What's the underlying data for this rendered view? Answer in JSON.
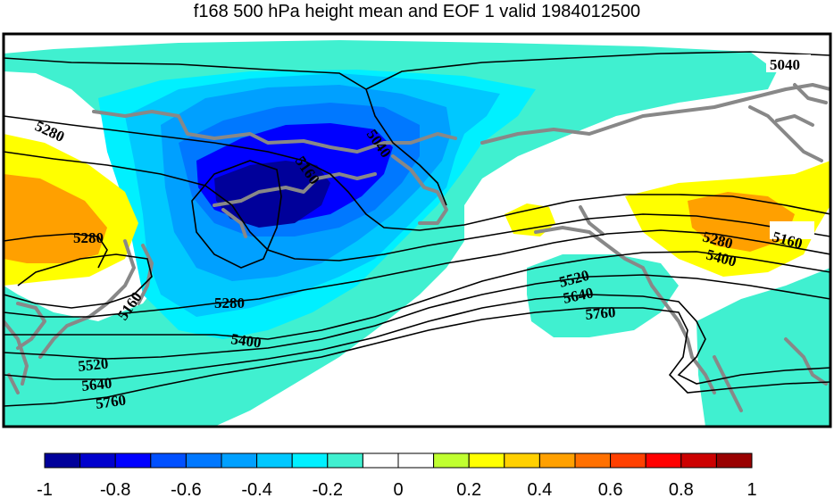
{
  "title": "f168 500 hPa height mean and EOF 1 valid 1984012500",
  "colors": {
    "ocean_white": "#ffffff",
    "coast": "#888888",
    "contour": "#000000",
    "frame": "#000000"
  },
  "contour_labels": [
    "5040",
    "5040",
    "5160",
    "5160",
    "5160",
    "5280",
    "5280",
    "5280",
    "5280",
    "5400",
    "5400",
    "5520",
    "5520",
    "5640",
    "5640",
    "5760",
    "5760"
  ],
  "colorbar": {
    "colors": [
      "#00009a",
      "#0000cd",
      "#0000ff",
      "#0050ff",
      "#0078ff",
      "#00a0ff",
      "#00c8ff",
      "#00f0ff",
      "#40f0d0",
      "#ffffff",
      "#ffffff",
      "#c0ff30",
      "#ffff00",
      "#ffd000",
      "#ffa000",
      "#ff7000",
      "#ff4000",
      "#ff0000",
      "#cc0000",
      "#990000"
    ],
    "tick_labels": [
      "-1",
      "-0.8",
      "-0.6",
      "-0.4",
      "-0.2",
      "0",
      "0.2",
      "0.4",
      "0.6",
      "0.8",
      "1"
    ]
  }
}
